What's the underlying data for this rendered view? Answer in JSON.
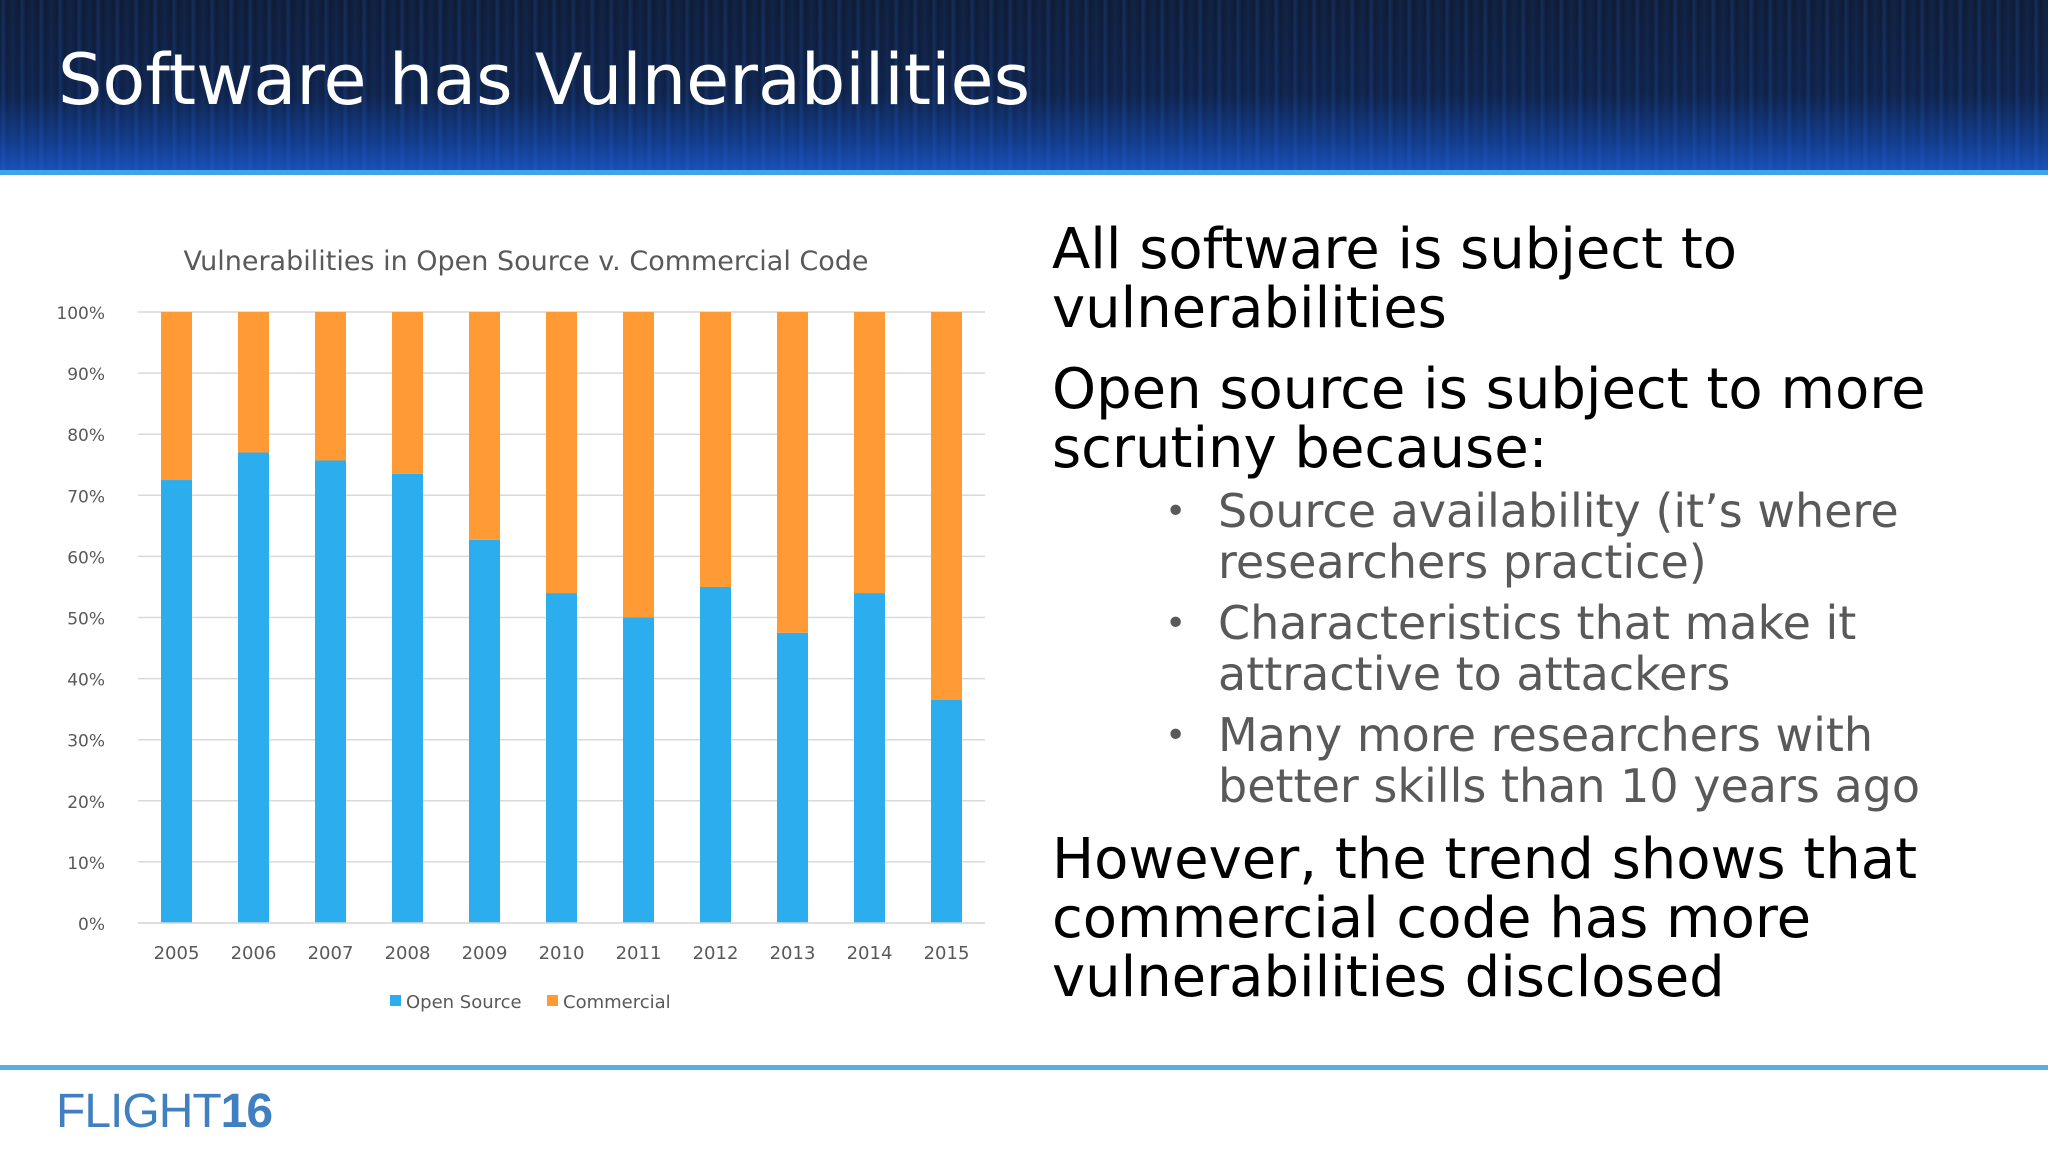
{
  "slide": {
    "title": "Software has Vulnerabilities"
  },
  "chart_data": {
    "type": "bar",
    "stacked": true,
    "title": "Vulnerabilities in Open Source v. Commercial Code",
    "categories": [
      "2005",
      "2006",
      "2007",
      "2008",
      "2009",
      "2010",
      "2011",
      "2012",
      "2013",
      "2014",
      "2015"
    ],
    "series": [
      {
        "name": "Open Source",
        "color": "#2cadee",
        "values": [
          72.5,
          77,
          75.7,
          73.5,
          62.7,
          54,
          50,
          55,
          47.5,
          54,
          36.5
        ]
      },
      {
        "name": "Commercial",
        "color": "#ff9a35",
        "values": [
          27.5,
          23,
          24.3,
          26.5,
          37.3,
          46,
          50,
          45,
          52.5,
          46,
          63.5
        ]
      }
    ],
    "y_ticks": [
      "0%",
      "10%",
      "20%",
      "30%",
      "40%",
      "50%",
      "60%",
      "70%",
      "80%",
      "90%",
      "100%"
    ],
    "ylim": [
      0,
      100
    ],
    "grid": true,
    "legend_position": "bottom"
  },
  "text_blocks": {
    "p1": "All software is subject to vulnerabilities",
    "p2": "Open source is subject to more scrutiny because:",
    "bullets": [
      "Source availability (it’s where researchers practice)",
      "Characteristics that make it attractive to attackers",
      "Many more researchers with better skills than 10 years ago"
    ],
    "p3": "However, the trend shows that commercial code has more vulnerabilities disclosed"
  },
  "footer": {
    "logo_text_light": "FLIGHT",
    "logo_text_bold": "16"
  }
}
